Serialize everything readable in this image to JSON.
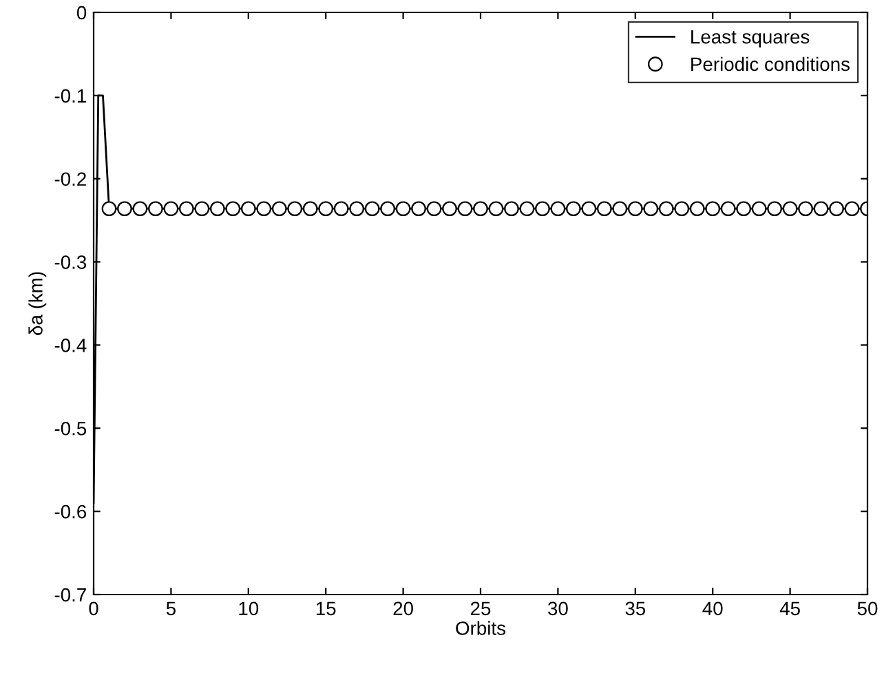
{
  "chart_data": {
    "type": "line",
    "xlabel": "Orbits",
    "ylabel": "δa (km)",
    "xlim": [
      0,
      50
    ],
    "ylim": [
      -0.7,
      0
    ],
    "xticks": [
      0,
      5,
      10,
      15,
      20,
      25,
      30,
      35,
      40,
      45,
      50
    ],
    "yticks": [
      -0.7,
      -0.6,
      -0.5,
      -0.4,
      -0.3,
      -0.2,
      -0.1,
      0
    ],
    "grid": false,
    "legend": "top right",
    "series": [
      {
        "name": "Least squares",
        "color": "#000000",
        "marker": "none",
        "line_style": "solid",
        "x": [
          0,
          0.3,
          0.6,
          1,
          50
        ],
        "values": [
          -0.59,
          -0.1,
          -0.1,
          -0.236,
          -0.236
        ]
      },
      {
        "name": "Periodic conditions",
        "type": "scatter",
        "color": "#000000",
        "marker": "circle",
        "x": [
          1,
          2,
          3,
          4,
          5,
          6,
          7,
          8,
          9,
          10,
          11,
          12,
          13,
          14,
          15,
          16,
          17,
          18,
          19,
          20,
          21,
          22,
          23,
          24,
          25,
          26,
          27,
          28,
          29,
          30,
          31,
          32,
          33,
          34,
          35,
          36,
          37,
          38,
          39,
          40,
          41,
          42,
          43,
          44,
          45,
          46,
          47,
          48,
          49,
          50
        ],
        "values": [
          -0.236,
          -0.236,
          -0.236,
          -0.236,
          -0.236,
          -0.236,
          -0.236,
          -0.236,
          -0.236,
          -0.236,
          -0.236,
          -0.236,
          -0.236,
          -0.236,
          -0.236,
          -0.236,
          -0.236,
          -0.236,
          -0.236,
          -0.236,
          -0.236,
          -0.236,
          -0.236,
          -0.236,
          -0.236,
          -0.236,
          -0.236,
          -0.236,
          -0.236,
          -0.236,
          -0.236,
          -0.236,
          -0.236,
          -0.236,
          -0.236,
          -0.236,
          -0.236,
          -0.236,
          -0.236,
          -0.236,
          -0.236,
          -0.236,
          -0.236,
          -0.236,
          -0.236,
          -0.236,
          -0.236,
          -0.236,
          -0.236,
          -0.236
        ]
      }
    ]
  }
}
